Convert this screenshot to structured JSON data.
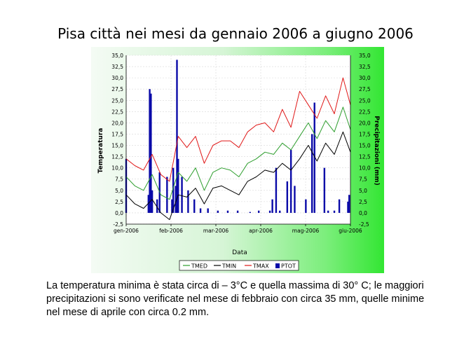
{
  "slide": {
    "title": "Pisa città nei mesi da gennaio 2006 a giugno 2006",
    "caption": "La temperatura minima è stata circa di – 3°C e quella massima di 30° C; le maggiori precipitazioni si sono verificate nel mese di febbraio con circa 35 mm, quelle minime nel mese di aprile con circa 0.2 mm."
  },
  "chart_data": {
    "type": "line",
    "title": "",
    "xlabel": "Data",
    "ylabel": "Temperatura",
    "y2label": "Precipitazioni (mm)",
    "x_ticks": [
      "gen-2006",
      "feb-2006",
      "mar-2006",
      "apr-2006",
      "mag-2006",
      "giu-2006"
    ],
    "ylim": [
      -2.5,
      35.0
    ],
    "y_ticks": [
      "35,0",
      "32,5",
      "30,0",
      "27,5",
      "25,0",
      "22,5",
      "20,0",
      "17,5",
      "15,0",
      "12,5",
      "10,0",
      "7,5",
      "5,0",
      "2,5",
      "0,0",
      "-2,5"
    ],
    "y2lim": [
      -2.5,
      35.0
    ],
    "y2_ticks": [
      "35,0",
      "32,5",
      "30,0",
      "27,5",
      "25,0",
      "22,5",
      "20,0",
      "17,5",
      "15,0",
      "12,5",
      "10,0",
      "7,5",
      "5,0",
      "2,5",
      "0,0",
      "-2,5"
    ],
    "grid": true,
    "legend_position": "bottom",
    "x_days": [
      0,
      7,
      14,
      21,
      28,
      35,
      42,
      49,
      56,
      63,
      70,
      77,
      84,
      91,
      98,
      105,
      112,
      119,
      126,
      133,
      140,
      147,
      154,
      161,
      168,
      175,
      181
    ],
    "series": [
      {
        "name": "TMED",
        "kind": "line",
        "color": "#2e9e2e",
        "values": [
          8.0,
          6.0,
          5.0,
          8.5,
          4.0,
          3.0,
          9.0,
          7.0,
          10.0,
          5.0,
          9.0,
          10.0,
          9.5,
          8.0,
          11.0,
          12.0,
          13.5,
          13.0,
          15.5,
          14.0,
          17.0,
          20.0,
          16.5,
          20.5,
          18.0,
          23.5,
          18.5
        ]
      },
      {
        "name": "TMIN",
        "kind": "line",
        "color": "#000000",
        "values": [
          4.0,
          2.0,
          1.0,
          3.0,
          0.0,
          -1.5,
          4.0,
          3.5,
          5.5,
          2.0,
          5.5,
          6.0,
          5.0,
          4.0,
          7.0,
          8.0,
          9.5,
          9.0,
          11.0,
          9.5,
          12.0,
          15.0,
          11.5,
          15.5,
          13.0,
          18.0,
          13.5
        ]
      },
      {
        "name": "TMAX",
        "kind": "line",
        "color": "#e01818",
        "values": [
          12.0,
          10.5,
          9.5,
          13.0,
          8.5,
          7.0,
          17.0,
          14.5,
          17.0,
          11.0,
          15.0,
          16.0,
          16.0,
          14.5,
          18.0,
          19.5,
          20.0,
          18.0,
          23.0,
          19.0,
          27.0,
          24.0,
          21.0,
          26.0,
          22.0,
          30.0,
          24.0
        ]
      },
      {
        "name": "PTOT",
        "kind": "bar",
        "color": "#0a0aa8",
        "days": [
          0,
          18,
          19,
          20,
          21,
          25,
          27,
          33,
          37,
          38,
          40,
          41,
          42,
          45,
          50,
          55,
          60,
          66,
          74,
          82,
          90,
          100,
          107,
          116,
          118,
          121,
          124,
          130,
          133,
          136,
          145,
          150,
          152,
          160,
          163,
          168,
          172,
          179,
          180
        ],
        "values": [
          12.0,
          4.0,
          27.5,
          26.5,
          5.0,
          3.0,
          9.0,
          8.0,
          3.0,
          10.0,
          6.0,
          34.0,
          12.0,
          8.0,
          5.0,
          3.0,
          1.0,
          1.0,
          0.5,
          0.5,
          0.5,
          0.2,
          0.5,
          0.5,
          3.0,
          10.0,
          0.5,
          7.0,
          14.0,
          6.0,
          3.0,
          17.5,
          24.5,
          10.0,
          0.5,
          0.5,
          3.0,
          2.5,
          4.0
        ]
      }
    ]
  }
}
